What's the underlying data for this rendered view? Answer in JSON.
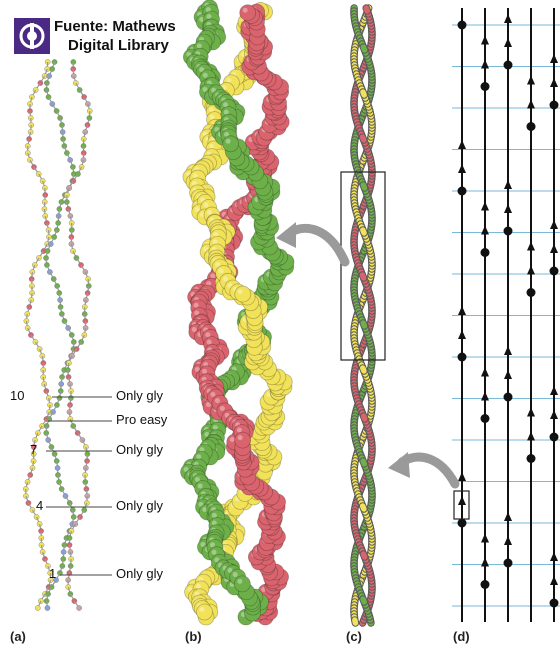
{
  "source_credit": {
    "line1": "Fuente: Mathews",
    "line2": "Digital Library"
  },
  "panels": {
    "a": "(a)",
    "b": "(b)",
    "c": "(c)",
    "d": "(d)"
  },
  "residue_labels": [
    {
      "number": "10",
      "text": "Only gly"
    },
    {
      "number": "",
      "text": "Pro easy"
    },
    {
      "number": "7",
      "text": "Only gly"
    },
    {
      "number": "4",
      "text": "Only gly"
    },
    {
      "number": "1",
      "text": "Only gly"
    }
  ],
  "colors": {
    "strand_red": "#d9646e",
    "strand_yellow": "#f1e25a",
    "strand_green": "#6db04a",
    "grid_line": "#7ab9d9",
    "logo_purple": "#4b2a86"
  }
}
